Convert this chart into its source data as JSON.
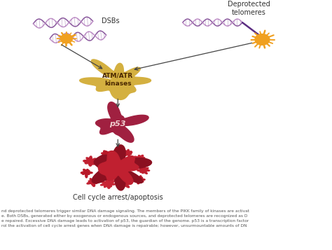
{
  "bg_color": "#ffffff",
  "fig_width": 4.74,
  "fig_height": 3.57,
  "dsb_label": "DSBs",
  "deprotected_label": "Deprotected\ntelomeres",
  "atm_label": "ATM/ATR\nkinases",
  "p53_label": "p53",
  "cell_cycle_label": "Cell cycle arrest/apoptosis",
  "caption_lines": [
    "nd deprotected telomeres trigger similar DNA damage signaling. The members of the PIKK family of kinases are activat",
    "e. Both DSBs, generated either by exogenous or endogenous sources, and deprotected telomeres are recognized as D",
    "e repaired. Excessive DNA damage leads to activation of p53, the guardian of the genome. p53 is a transcription factor",
    "rol the activation of cell cycle arrest genes when DNA damage is repairable; however, unsurmountable amounts of DN"
  ],
  "dna_purple": "#8B5A9E",
  "dna_dark": "#5B2D82",
  "dna_pink": "#C090C8",
  "sun_color": "#F0A020",
  "atm_color": "#D4B040",
  "p53_color": "#A02040",
  "cell_dark": "#8B1020",
  "cell_mid": "#C02030",
  "cell_light": "#D04040",
  "arrow_color": "#444444",
  "label_color": "#333333",
  "caption_color": "#555555"
}
